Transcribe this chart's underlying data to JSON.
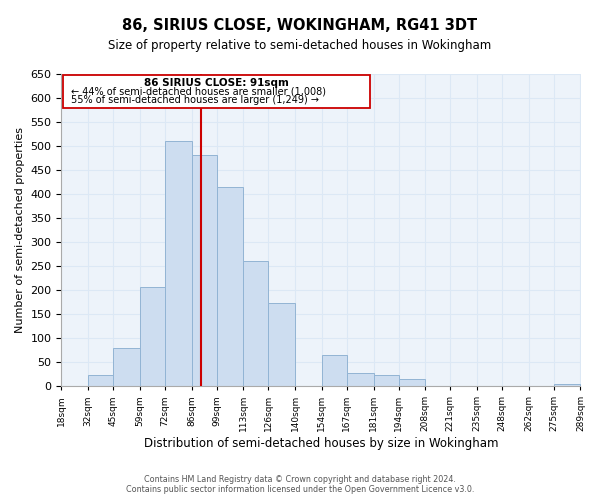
{
  "title": "86, SIRIUS CLOSE, WOKINGHAM, RG41 3DT",
  "subtitle": "Size of property relative to semi-detached houses in Wokingham",
  "xlabel": "Distribution of semi-detached houses by size in Wokingham",
  "ylabel": "Number of semi-detached properties",
  "bar_left_edges": [
    18,
    32,
    45,
    59,
    72,
    86,
    99,
    113,
    126,
    140,
    154,
    167,
    181,
    194,
    208,
    221,
    235,
    248,
    262,
    275
  ],
  "bar_right_edges": [
    32,
    45,
    59,
    72,
    86,
    99,
    113,
    126,
    140,
    154,
    167,
    181,
    194,
    208,
    221,
    235,
    248,
    262,
    275,
    289
  ],
  "bar_heights": [
    0,
    22,
    80,
    207,
    510,
    482,
    415,
    260,
    172,
    0,
    65,
    28,
    23,
    14,
    0,
    0,
    0,
    0,
    0,
    5
  ],
  "bar_color": "#cdddf0",
  "bar_edge_color": "#92b4d4",
  "tick_labels": [
    "18sqm",
    "32sqm",
    "45sqm",
    "59sqm",
    "72sqm",
    "86sqm",
    "99sqm",
    "113sqm",
    "126sqm",
    "140sqm",
    "154sqm",
    "167sqm",
    "181sqm",
    "194sqm",
    "208sqm",
    "221sqm",
    "235sqm",
    "248sqm",
    "262sqm",
    "275sqm",
    "289sqm"
  ],
  "tick_positions": [
    18,
    32,
    45,
    59,
    72,
    86,
    99,
    113,
    126,
    140,
    154,
    167,
    181,
    194,
    208,
    221,
    235,
    248,
    262,
    275,
    289
  ],
  "property_line_x": 91,
  "property_line_color": "#cc0000",
  "ylim": [
    0,
    650
  ],
  "yticks": [
    0,
    50,
    100,
    150,
    200,
    250,
    300,
    350,
    400,
    450,
    500,
    550,
    600,
    650
  ],
  "ann_line1": "86 SIRIUS CLOSE: 91sqm",
  "ann_line2": "← 44% of semi-detached houses are smaller (1,008)",
  "ann_line3": "55% of semi-detached houses are larger (1,249) →",
  "footer_line1": "Contains HM Land Registry data © Crown copyright and database right 2024.",
  "footer_line2": "Contains public sector information licensed under the Open Government Licence v3.0.",
  "grid_color": "#dce8f5",
  "background_color": "#edf3fa"
}
